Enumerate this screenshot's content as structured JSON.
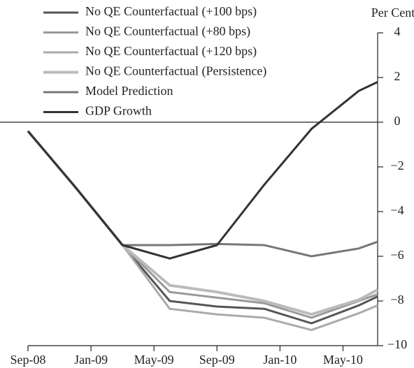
{
  "chart_data": {
    "type": "line",
    "y_label": "Per Cent",
    "x": [
      0,
      3,
      6,
      9,
      12,
      15,
      18,
      21,
      22.2
    ],
    "xlim": [
      0,
      22.2
    ],
    "xticks": [
      {
        "value": 0,
        "label": "Sep-08"
      },
      {
        "value": 4,
        "label": "Jan-09"
      },
      {
        "value": 8,
        "label": "May-09"
      },
      {
        "value": 12,
        "label": "Sep-09"
      },
      {
        "value": 16,
        "label": "Jan-10"
      },
      {
        "value": 20,
        "label": "May-10"
      }
    ],
    "ylim": [
      -10,
      4
    ],
    "yticks": [
      4,
      2,
      0,
      {
        "value": -2,
        "label": "−2"
      },
      {
        "value": -4,
        "label": "−4"
      },
      {
        "value": -6,
        "label": "−6"
      },
      {
        "value": -8,
        "label": "−8"
      },
      {
        "value": -10,
        "label": "−10"
      }
    ],
    "legend": "upper left",
    "series": [
      {
        "name": "No QE Counterfactual (+100 bps)",
        "color": "#555555",
        "values": [
          -0.4,
          -2.9,
          -5.5,
          -8.0,
          -8.25,
          -8.35,
          -9.0,
          -8.2,
          -7.8
        ]
      },
      {
        "name": "No QE Counterfactual (+80 bps)",
        "color": "#999999",
        "values": [
          -0.4,
          -2.9,
          -5.5,
          -7.6,
          -7.85,
          -8.1,
          -8.75,
          -8.0,
          -7.7
        ]
      },
      {
        "name": "No QE Counterfactual (+120 bps)",
        "color": "#aaaaaa",
        "values": [
          -0.4,
          -2.9,
          -5.5,
          -8.35,
          -8.6,
          -8.75,
          -9.3,
          -8.55,
          -8.2
        ]
      },
      {
        "name": "No QE Counterfactual (Persistence)",
        "color": "#bbbbbb",
        "values": [
          -0.4,
          -2.9,
          -5.5,
          -7.3,
          -7.6,
          -8.0,
          -8.6,
          -7.95,
          -7.5
        ]
      },
      {
        "name": "Model Prediction",
        "color": "#777777",
        "values": [
          -0.4,
          -2.9,
          -5.5,
          -5.5,
          -5.45,
          -5.5,
          -6.0,
          -5.65,
          -5.35
        ]
      },
      {
        "name": "GDP Growth",
        "color": "#333333",
        "values": [
          -0.4,
          -2.9,
          -5.5,
          -6.1,
          -5.5,
          -2.8,
          -0.3,
          1.4,
          1.8
        ]
      }
    ]
  }
}
